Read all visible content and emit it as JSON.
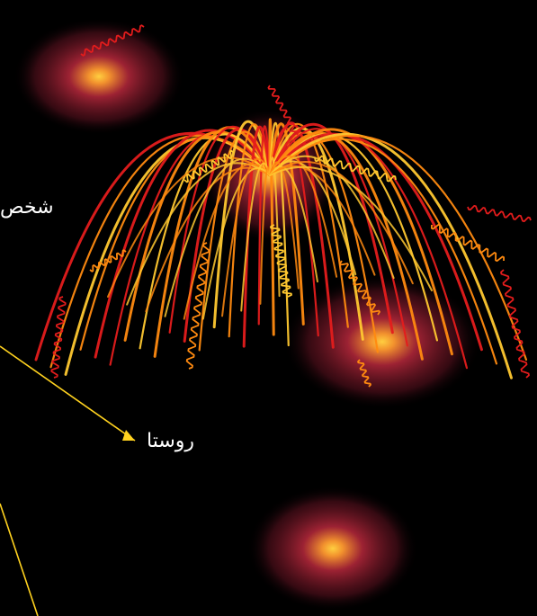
{
  "labels": {
    "person": "شخص",
    "village": "روستا"
  },
  "colors": {
    "background": "#000000",
    "glow_core": "#ffc43a",
    "glow_mid": "#c03040",
    "arc_red": "#e41c1c",
    "arc_orange": "#ff8a10",
    "arc_yellow": "#ffc830",
    "pointer_line": "#ffd21f",
    "text": "#ffffff"
  },
  "icons": {
    "decor": "firework-burst",
    "glows": "glow-orb"
  }
}
